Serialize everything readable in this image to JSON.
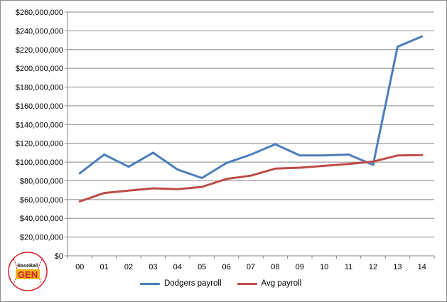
{
  "chart_data": {
    "type": "line",
    "categories": [
      "00",
      "01",
      "02",
      "03",
      "04",
      "05",
      "06",
      "07",
      "08",
      "09",
      "10",
      "11",
      "12",
      "13",
      "14"
    ],
    "ylim": [
      0,
      260000000
    ],
    "ytick_step": 20000000,
    "ytick_labels": [
      "$0",
      "$20,000,000",
      "$40,000,000",
      "$60,000,000",
      "$80,000,000",
      "$100,000,000",
      "$120,000,000",
      "$140,000,000",
      "$160,000,000",
      "$180,000,000",
      "$200,000,000",
      "$220,000,000",
      "$240,000,000",
      "$260,000,000"
    ],
    "grid": true,
    "legend_position": "bottom",
    "series": [
      {
        "name": "Dodgers payroll",
        "color": "#4a7ebb",
        "values": [
          88000000,
          108000000,
          95000000,
          110000000,
          92000000,
          83000000,
          99000000,
          108000000,
          119000000,
          107000000,
          107000000,
          108000000,
          97000000,
          223000000,
          234000000
        ]
      },
      {
        "name": "Avg payroll",
        "color": "#be4b48",
        "values": [
          58000000,
          67000000,
          69500000,
          72000000,
          71000000,
          73500000,
          82000000,
          85500000,
          93000000,
          94000000,
          96000000,
          98000000,
          100500000,
          107000000,
          107500000
        ]
      }
    ]
  },
  "logo": {
    "top_text": "BaseBall",
    "main_text": "GEN",
    "colors": {
      "red": "#d0202a",
      "gold": "#f3b21a"
    }
  }
}
